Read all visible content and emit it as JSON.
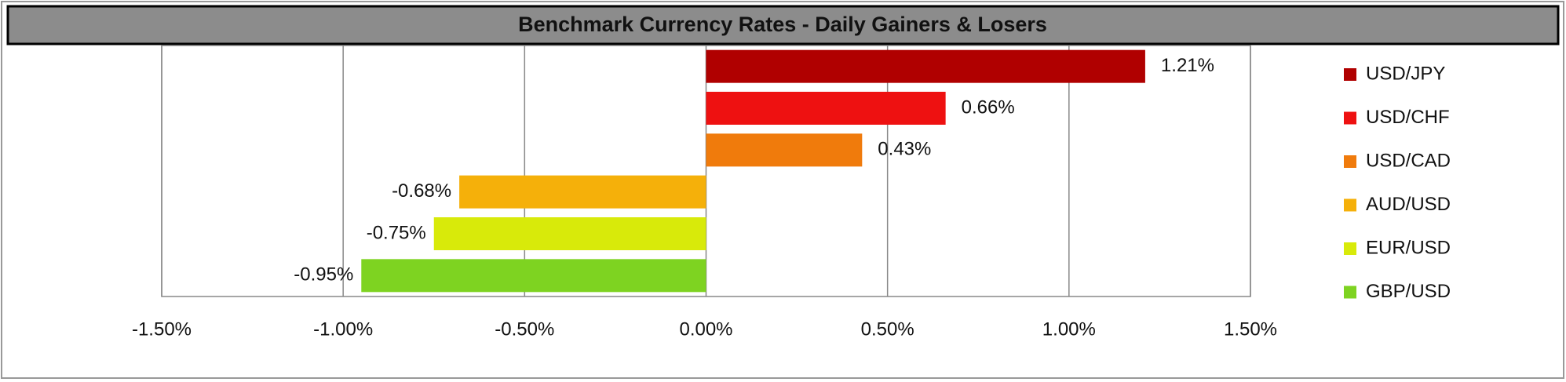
{
  "chart_data": {
    "type": "bar",
    "orientation": "horizontal",
    "title": "Benchmark Currency Rates - Daily Gainers & Losers",
    "categories": [
      "USD/JPY",
      "USD/CHF",
      "USD/CAD",
      "AUD/USD",
      "EUR/USD",
      "GBP/USD"
    ],
    "values": [
      1.21,
      0.66,
      0.43,
      -0.68,
      -0.75,
      -0.95
    ],
    "value_labels": [
      "1.21%",
      "0.66%",
      "0.43%",
      "-0.68%",
      "-0.75%",
      "-0.95%"
    ],
    "colors": [
      "#b00000",
      "#ee1111",
      "#f07b0c",
      "#f5b00a",
      "#d8ea0a",
      "#7ed321"
    ],
    "xlim": [
      -1.5,
      1.5
    ],
    "xticks": [
      {
        "value": -1.5,
        "label": "-1.50%"
      },
      {
        "value": -1.0,
        "label": "-1.00%"
      },
      {
        "value": -0.5,
        "label": "-0.50%"
      },
      {
        "value": 0,
        "label": "0.00%"
      },
      {
        "value": 0.5,
        "label": "0.50%"
      },
      {
        "value": 1.0,
        "label": "1.00%"
      },
      {
        "value": 1.5,
        "label": "1.50%"
      }
    ],
    "grid": true,
    "legend": "right"
  }
}
